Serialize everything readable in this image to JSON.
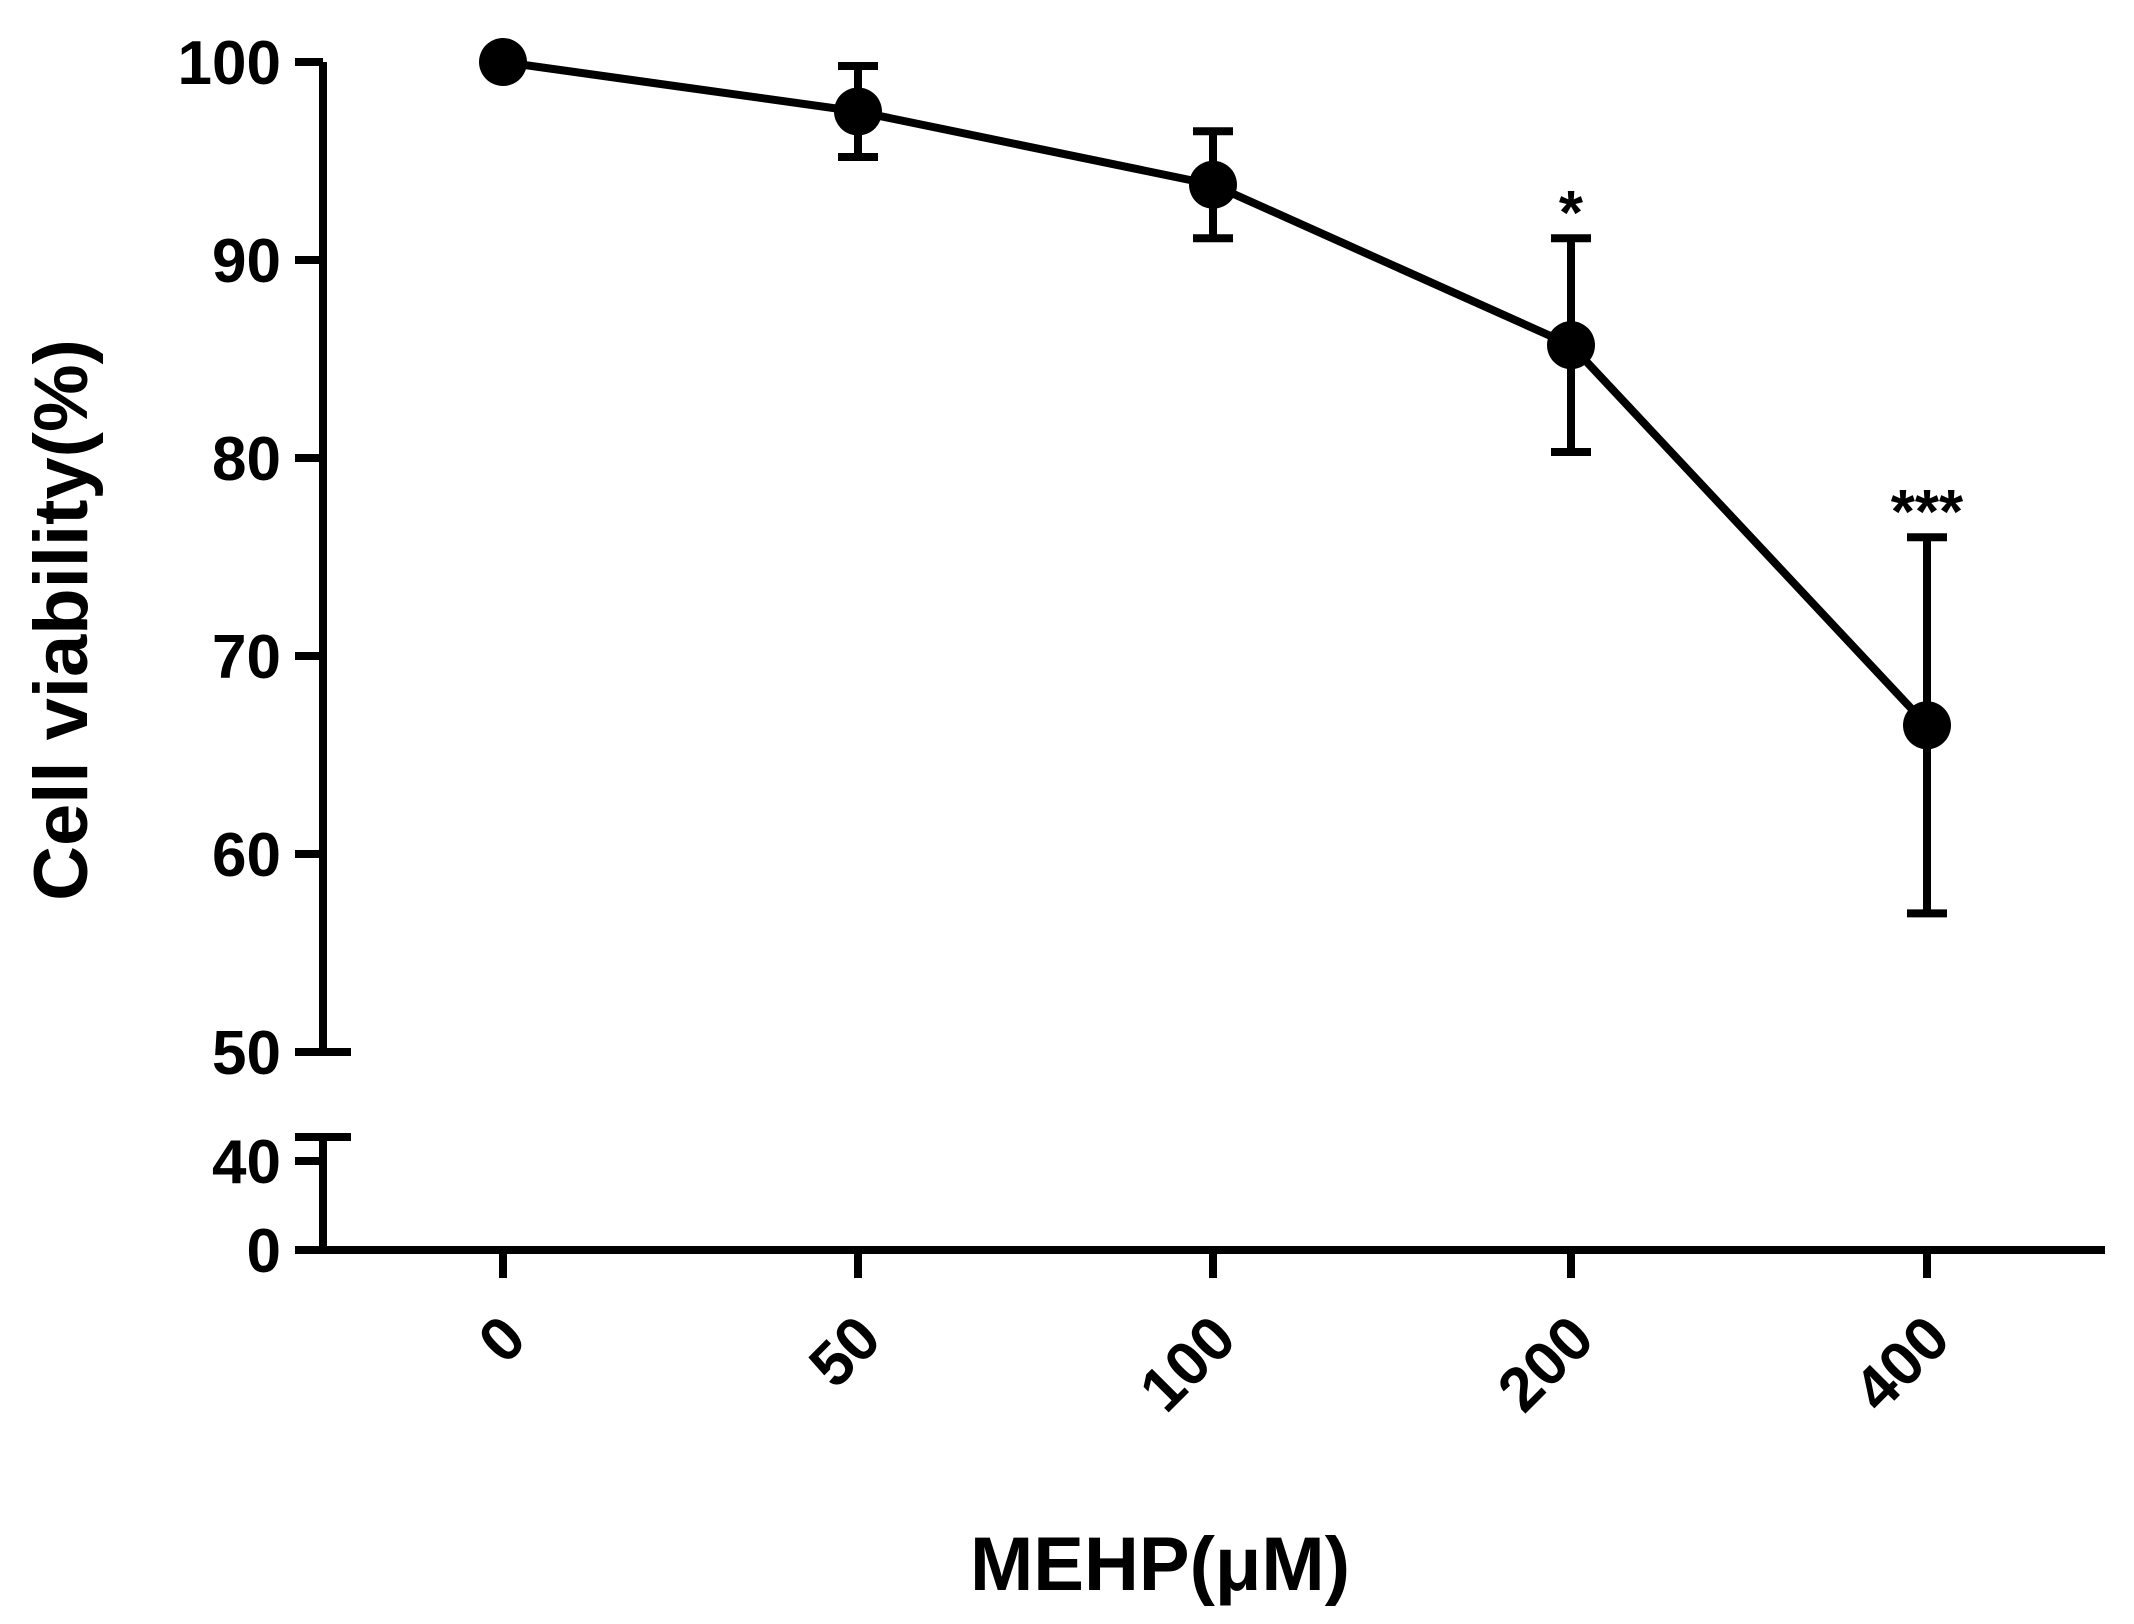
{
  "chart_data": {
    "type": "line",
    "title": "",
    "xlabel": "MEHP(μM)",
    "ylabel": "Cell viability(%)",
    "categories": [
      "0",
      "50",
      "100",
      "200",
      "400"
    ],
    "series": [
      {
        "name": "Cell viability",
        "values": [
          100,
          97.5,
          93.8,
          85.7,
          66.5
        ],
        "error": [
          0,
          2.3,
          2.7,
          5.4,
          9.5
        ],
        "annotations": [
          "",
          "",
          "",
          "*",
          "***"
        ]
      }
    ],
    "y_axis": {
      "broken": true,
      "lower_segment": {
        "range": [
          0,
          40
        ],
        "ticks": [
          0,
          40
        ],
        "tick_labels": [
          "0",
          "40"
        ]
      },
      "upper_segment": {
        "range": [
          50,
          100
        ],
        "ticks": [
          50,
          60,
          70,
          80,
          90,
          100
        ],
        "tick_labels": [
          "50",
          "60",
          "70",
          "80",
          "90",
          "100"
        ]
      }
    },
    "grid": false,
    "legend": "none",
    "x_tick_rotation_deg": -45,
    "colors": {
      "line": "#000000",
      "marker": "#000000"
    }
  }
}
